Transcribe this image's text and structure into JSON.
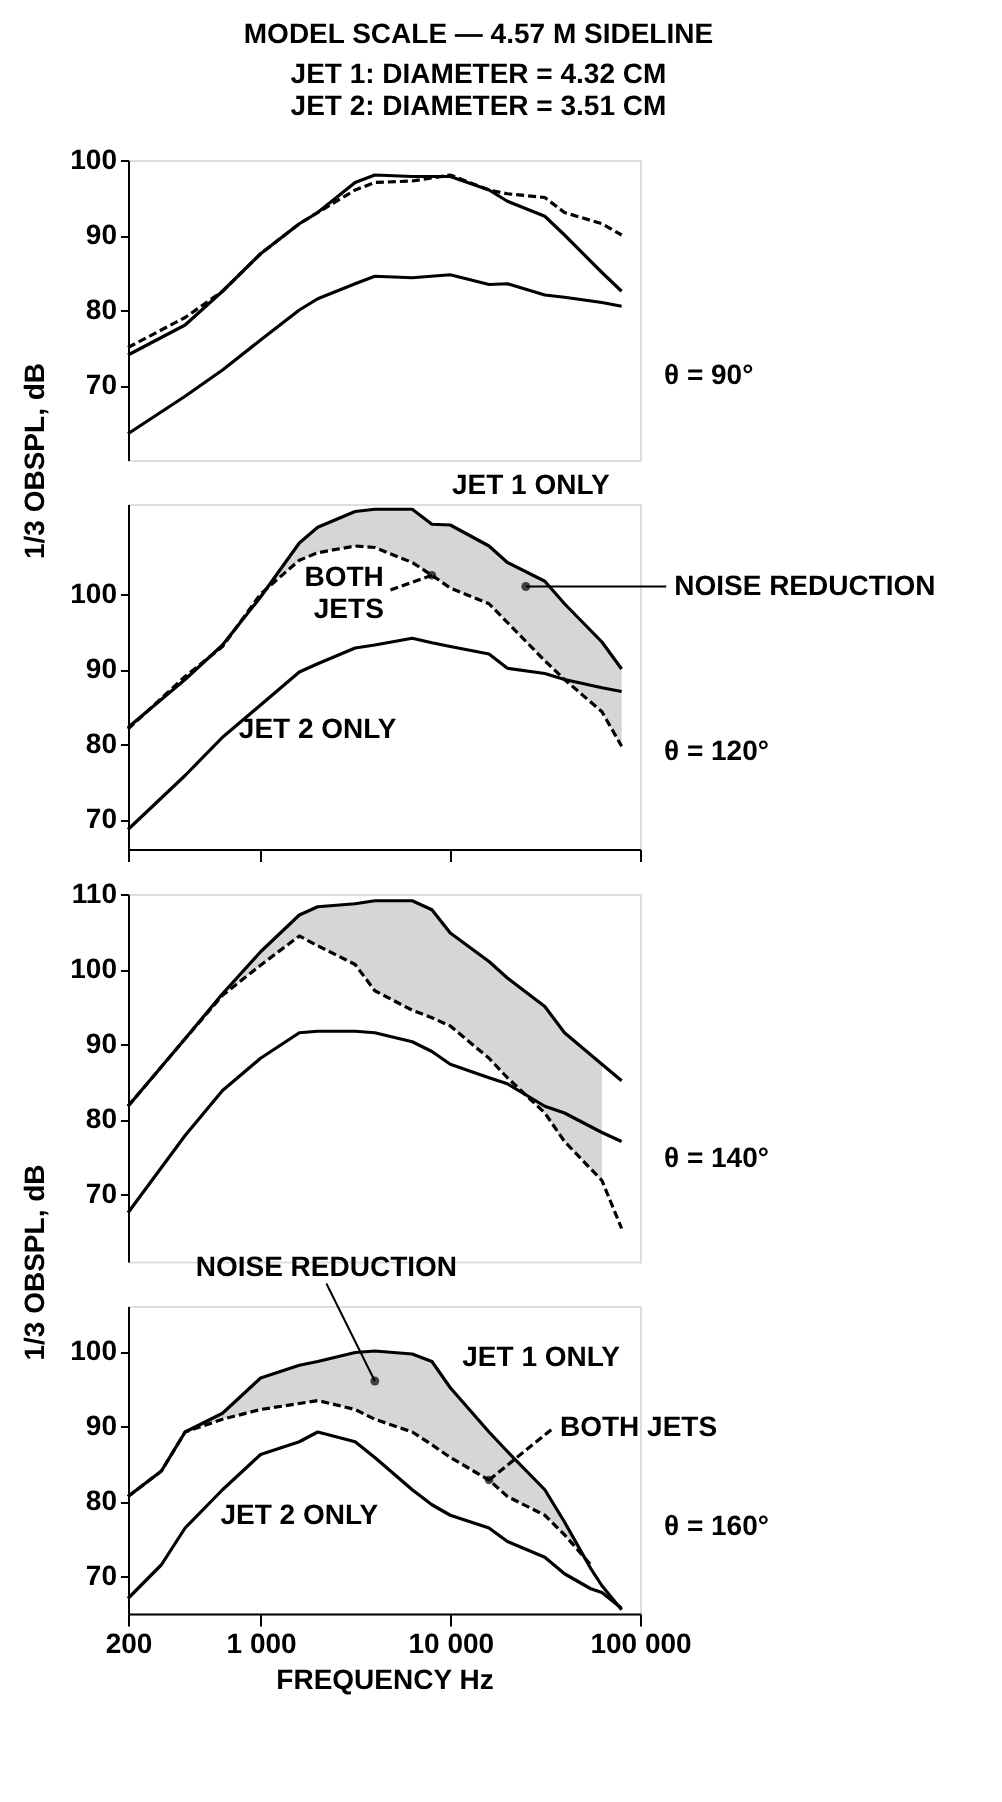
{
  "chart_data": [
    {
      "type": "line",
      "title": "MODEL SCALE — 4.57 M SIDELINE",
      "subtitle": "JET 1: DIAMETER = 4.32 CM\nJET 2: DIAMETER = 3.51 CM",
      "ylabel": "1/3 OBSPL, dB",
      "log": "x",
      "xlim": [
        200,
        100000
      ],
      "ylim": [
        60,
        100
      ],
      "yticks": [
        70,
        80,
        90,
        100
      ],
      "tick_labels": "y",
      "x": [
        200,
        400,
        630,
        1000,
        1600,
        2000,
        3150,
        4000,
        6300,
        10000,
        16000,
        20000,
        31500,
        40000,
        63000,
        80000
      ],
      "series": [
        {
          "color": "#000000",
          "line_style": "solid",
          "values": [
            74,
            78,
            82.5,
            87.5,
            91.5,
            93,
            97,
            98,
            97.8,
            97.8,
            96,
            94.5,
            92.5,
            90,
            85,
            82.5
          ]
        },
        {
          "color": "#000000",
          "line_style": "dashed",
          "values": [
            75,
            79,
            82.5,
            87.5,
            91.5,
            93,
            96,
            97,
            97.2,
            98,
            96,
            95.5,
            95,
            93,
            91.5,
            90
          ]
        },
        {
          "color": "#000000",
          "line_style": "solid",
          "values": [
            63.5,
            68.5,
            72,
            76,
            80,
            81.5,
            83.5,
            84.5,
            84.3,
            84.7,
            83.4,
            83.5,
            82,
            81.7,
            81,
            80.5
          ]
        }
      ],
      "annotations": [
        "θ = 90°"
      ]
    },
    {
      "type": "line",
      "log": "x",
      "xlim": [
        200,
        100000
      ],
      "xticks": [
        {
          "value": 200,
          "label": null
        },
        {
          "value": 1000,
          "label": null
        },
        {
          "value": 10000,
          "label": null
        },
        {
          "value": 100000,
          "label": null
        }
      ],
      "ylim": [
        66,
        112
      ],
      "yticks": [
        70,
        80,
        90,
        100
      ],
      "tick_labels": "y",
      "x": [
        200,
        400,
        630,
        1000,
        1600,
        2000,
        3150,
        4000,
        6300,
        8000,
        10000,
        16000,
        20000,
        31500,
        40000,
        63000,
        80000
      ],
      "series": [
        {
          "name": "JET 1 ONLY",
          "color": "#000000",
          "line_style": "solid",
          "values": [
            82.2,
            88.6,
            93.2,
            99.6,
            106.8,
            108.9,
            111,
            111.3,
            111.3,
            109.3,
            109.2,
            106.4,
            104.2,
            101.7,
            98.7,
            93.6,
            90
          ],
          "lower": [
            null,
            89,
            93,
            100,
            104.5,
            105.5,
            106.4,
            106.2,
            104.2,
            102.5,
            100.8,
            98.7,
            96.2,
            91.1,
            88.6,
            84.3,
            79.7
          ],
          "upper": [
            null,
            88.6,
            93.2,
            99.6,
            106.8,
            108.9,
            111,
            111.3,
            111.3,
            109.3,
            109.2,
            106.4,
            104.2,
            101.7,
            98.7,
            93.6,
            90
          ]
        },
        {
          "name": "BOTH JETS",
          "color": "#000000",
          "line_style": "dashed",
          "values": [
            82,
            89,
            93,
            100,
            104.5,
            105.5,
            106.4,
            106.2,
            104.2,
            102.5,
            100.8,
            98.7,
            96.2,
            91.1,
            88.6,
            84.3,
            79.7
          ]
        },
        {
          "name": "JET 2 ONLY",
          "color": "#000000",
          "line_style": "solid",
          "values": [
            68.6,
            75.8,
            80.9,
            85.2,
            89.6,
            90.7,
            92.8,
            93.2,
            94.1,
            93.5,
            93,
            92,
            90.1,
            89.4,
            88.6,
            87.5,
            87
          ]
        }
      ],
      "annotations": [
        {
          "text": "NOISE REDUCTION",
          "x": 25000,
          "y": 101
        },
        "θ = 120°"
      ]
    },
    {
      "type": "line",
      "ylabel": "1/3 OBSPL, dB",
      "log": "x",
      "xlim": [
        200,
        100000
      ],
      "ylim": [
        61,
        110
      ],
      "yticks": [
        70,
        80,
        90,
        100,
        110
      ],
      "tick_labels": "y",
      "x": [
        200,
        400,
        630,
        1000,
        1600,
        2000,
        3150,
        4000,
        6300,
        8000,
        10000,
        16000,
        20000,
        31500,
        40000,
        63000,
        80000
      ],
      "series": [
        {
          "color": "#000000",
          "line_style": "solid",
          "values": [
            81.7,
            90.7,
            96.7,
            102.3,
            107.2,
            108.3,
            108.7,
            109.1,
            109.1,
            107.9,
            104.8,
            101,
            98.8,
            95,
            91.5,
            87.3,
            85.1
          ],
          "lower": [
            null,
            90.7,
            96.5,
            100.5,
            104.4,
            103.1,
            100.6,
            97.1,
            94.5,
            93.5,
            92.4,
            88.1,
            85.5,
            80.8,
            77,
            71.8,
            null
          ],
          "upper": [
            null,
            90.7,
            96.7,
            102.3,
            107.2,
            108.3,
            108.7,
            109.1,
            109.1,
            107.9,
            104.8,
            101,
            98.8,
            95,
            91.5,
            87.3,
            null
          ]
        },
        {
          "color": "#000000",
          "line_style": "dashed",
          "values": [
            81.7,
            90.7,
            96.5,
            100.5,
            104.4,
            103.1,
            100.6,
            97.1,
            94.5,
            93.5,
            92.4,
            88.1,
            85.5,
            80.8,
            77,
            71.8,
            65.4
          ]
        },
        {
          "color": "#000000",
          "line_style": "solid",
          "values": [
            67.5,
            77.8,
            83.8,
            88.1,
            91.5,
            91.7,
            91.7,
            91.5,
            90.3,
            89,
            87.3,
            85.5,
            84.7,
            81.7,
            80.8,
            78.2,
            77
          ]
        }
      ],
      "annotations": [
        "θ = 140°"
      ]
    },
    {
      "type": "line",
      "xlabel": "FREQUENCY Hz",
      "log": "x",
      "xlim": [
        200,
        100000
      ],
      "xticks": [
        200,
        {
          "value": 1000,
          "label": "1 000"
        },
        {
          "value": 10000,
          "label": "10 000"
        },
        {
          "value": 100000,
          "label": "100 000"
        }
      ],
      "ylim": [
        65,
        106
      ],
      "yticks": [
        70,
        80,
        90,
        100
      ],
      "x": [
        200,
        300,
        400,
        630,
        1000,
        1600,
        2000,
        3150,
        4000,
        6300,
        8000,
        10000,
        16000,
        20000,
        31500,
        40000,
        55000,
        63000,
        80000
      ],
      "series": [
        {
          "name": "JET 1 ONLY",
          "color": "#000000",
          "line_style": "solid",
          "values": [
            80.6,
            84,
            89.2,
            91.7,
            96.4,
            98.1,
            98.6,
            99.8,
            100,
            99.6,
            98.6,
            95.1,
            89.2,
            86.6,
            81.5,
            77.2,
            71,
            68.7,
            65.5
          ],
          "lower": [
            null,
            null,
            89.2,
            90.9,
            92.2,
            93,
            93.4,
            92.2,
            90.9,
            89.2,
            87.5,
            85.8,
            82.8,
            80.6,
            78.1,
            75.5,
            71.5,
            null,
            null
          ],
          "upper": [
            null,
            null,
            89.2,
            91.7,
            96.4,
            98.1,
            98.6,
            99.8,
            100,
            99.6,
            98.6,
            95.1,
            89.2,
            86.6,
            81.5,
            77.2,
            71,
            null,
            null
          ]
        },
        {
          "name": "BOTH JETS",
          "color": "#000000",
          "line_style": "dashed",
          "values": [
            80.6,
            84,
            89.2,
            90.9,
            92.2,
            93,
            93.4,
            92.2,
            90.9,
            89.2,
            87.5,
            85.8,
            82.8,
            80.6,
            78.1,
            75.5,
            71.5,
            null,
            null
          ]
        },
        {
          "name": "JET 2 ONLY",
          "color": "#000000",
          "line_style": "solid",
          "values": [
            67,
            71.5,
            76.4,
            81.5,
            86.2,
            87.9,
            89.2,
            87.9,
            85.8,
            81.5,
            79.5,
            78.1,
            76.4,
            74.6,
            72.5,
            70.3,
            68.3,
            67.8,
            65.7
          ]
        }
      ],
      "annotations": [
        {
          "text": "NOISE REDUCTION",
          "x": 4000,
          "y": 96
        },
        "θ = 160°"
      ]
    }
  ]
}
